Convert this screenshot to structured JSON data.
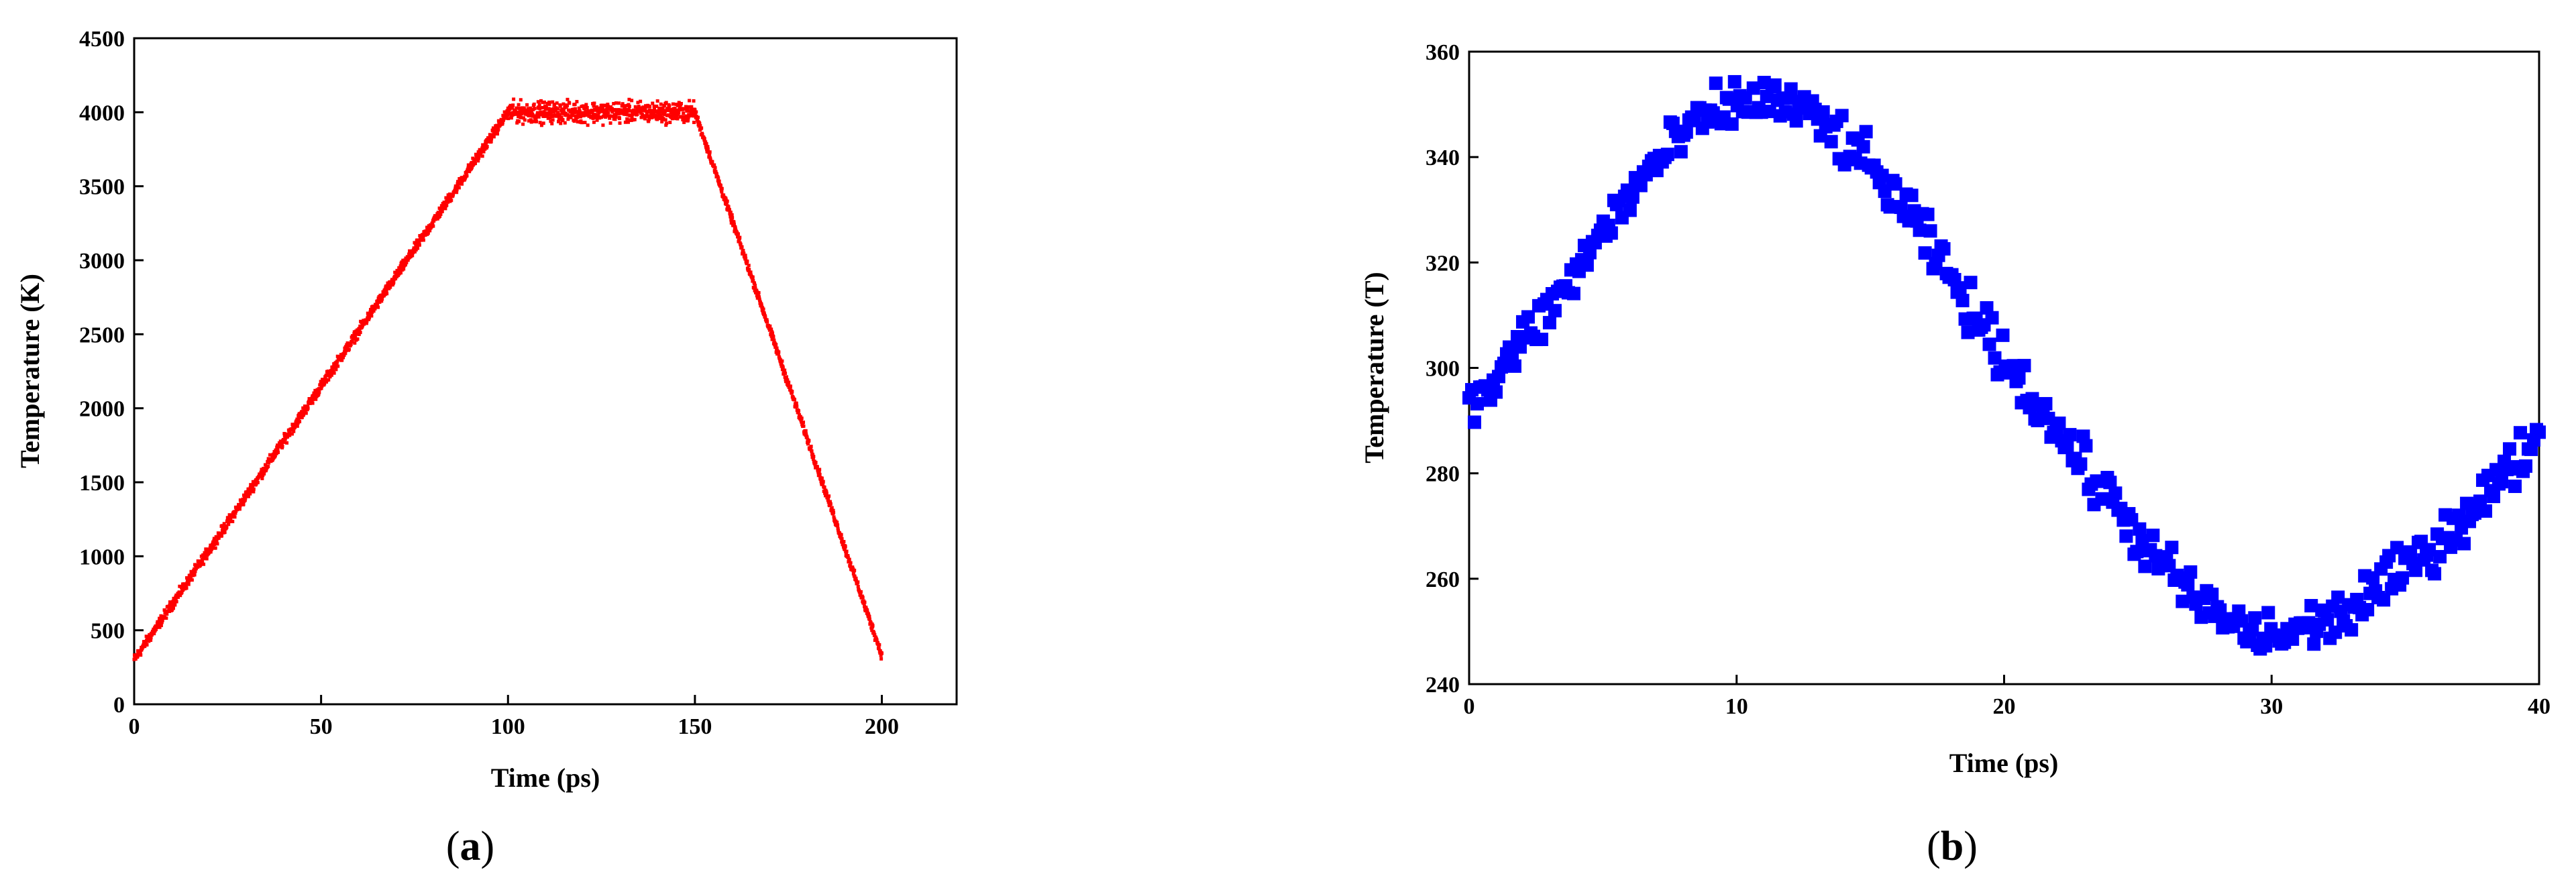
{
  "chart_data": [
    {
      "type": "scatter",
      "panel_label": "a",
      "title": "",
      "xlabel": "Time (ps)",
      "ylabel": "Temperature (K)",
      "xlim": [
        0,
        220
      ],
      "ylim": [
        0,
        4500
      ],
      "xticks": [
        0,
        50,
        100,
        150,
        200
      ],
      "yticks": [
        0,
        500,
        1000,
        1500,
        2000,
        2500,
        3000,
        3500,
        4000,
        4500
      ],
      "grid": false,
      "legend": "none",
      "marker": "small-dot",
      "color": "#ff0000",
      "series": [
        {
          "description": "heating ramp, plateau, cooling ramp",
          "segments": [
            {
              "x": [
                0,
                100
              ],
              "y": [
                300,
                4000
              ],
              "noise": 30
            },
            {
              "x": [
                100,
                150
              ],
              "y": [
                4000,
                4000
              ],
              "noise": 60
            },
            {
              "x": [
                150,
                200
              ],
              "y": [
                4000,
                330
              ],
              "noise": 25
            }
          ]
        }
      ]
    },
    {
      "type": "scatter",
      "panel_label": "b",
      "title": "",
      "xlabel": "Time (ps)",
      "ylabel": "Temperature (T)",
      "xlim": [
        0,
        40
      ],
      "ylim": [
        240,
        360
      ],
      "xticks": [
        0,
        10,
        20,
        30,
        40
      ],
      "yticks": [
        240,
        260,
        280,
        300,
        320,
        340,
        360
      ],
      "grid": false,
      "legend": "none",
      "marker": "square",
      "color": "#0000ff",
      "series": [
        {
          "x": [
            0,
            1,
            2,
            3,
            4,
            5,
            6,
            7,
            8,
            9,
            10,
            11,
            12,
            13,
            14,
            15,
            16,
            17,
            18,
            19,
            20,
            21,
            22,
            23,
            24,
            25,
            26,
            27,
            28,
            29,
            30,
            31,
            32,
            33,
            34,
            35,
            36,
            37,
            38,
            39,
            40
          ],
          "y": [
            292,
            298,
            305,
            311,
            318,
            326,
            333,
            339,
            344,
            348,
            350,
            351,
            350,
            347,
            343,
            338,
            332,
            325,
            317,
            309,
            302,
            295,
            288,
            281,
            275,
            268,
            262,
            257,
            253,
            250,
            249,
            250,
            252,
            254,
            258,
            262,
            266,
            271,
            276,
            281,
            288
          ],
          "noise": 4
        }
      ]
    }
  ]
}
